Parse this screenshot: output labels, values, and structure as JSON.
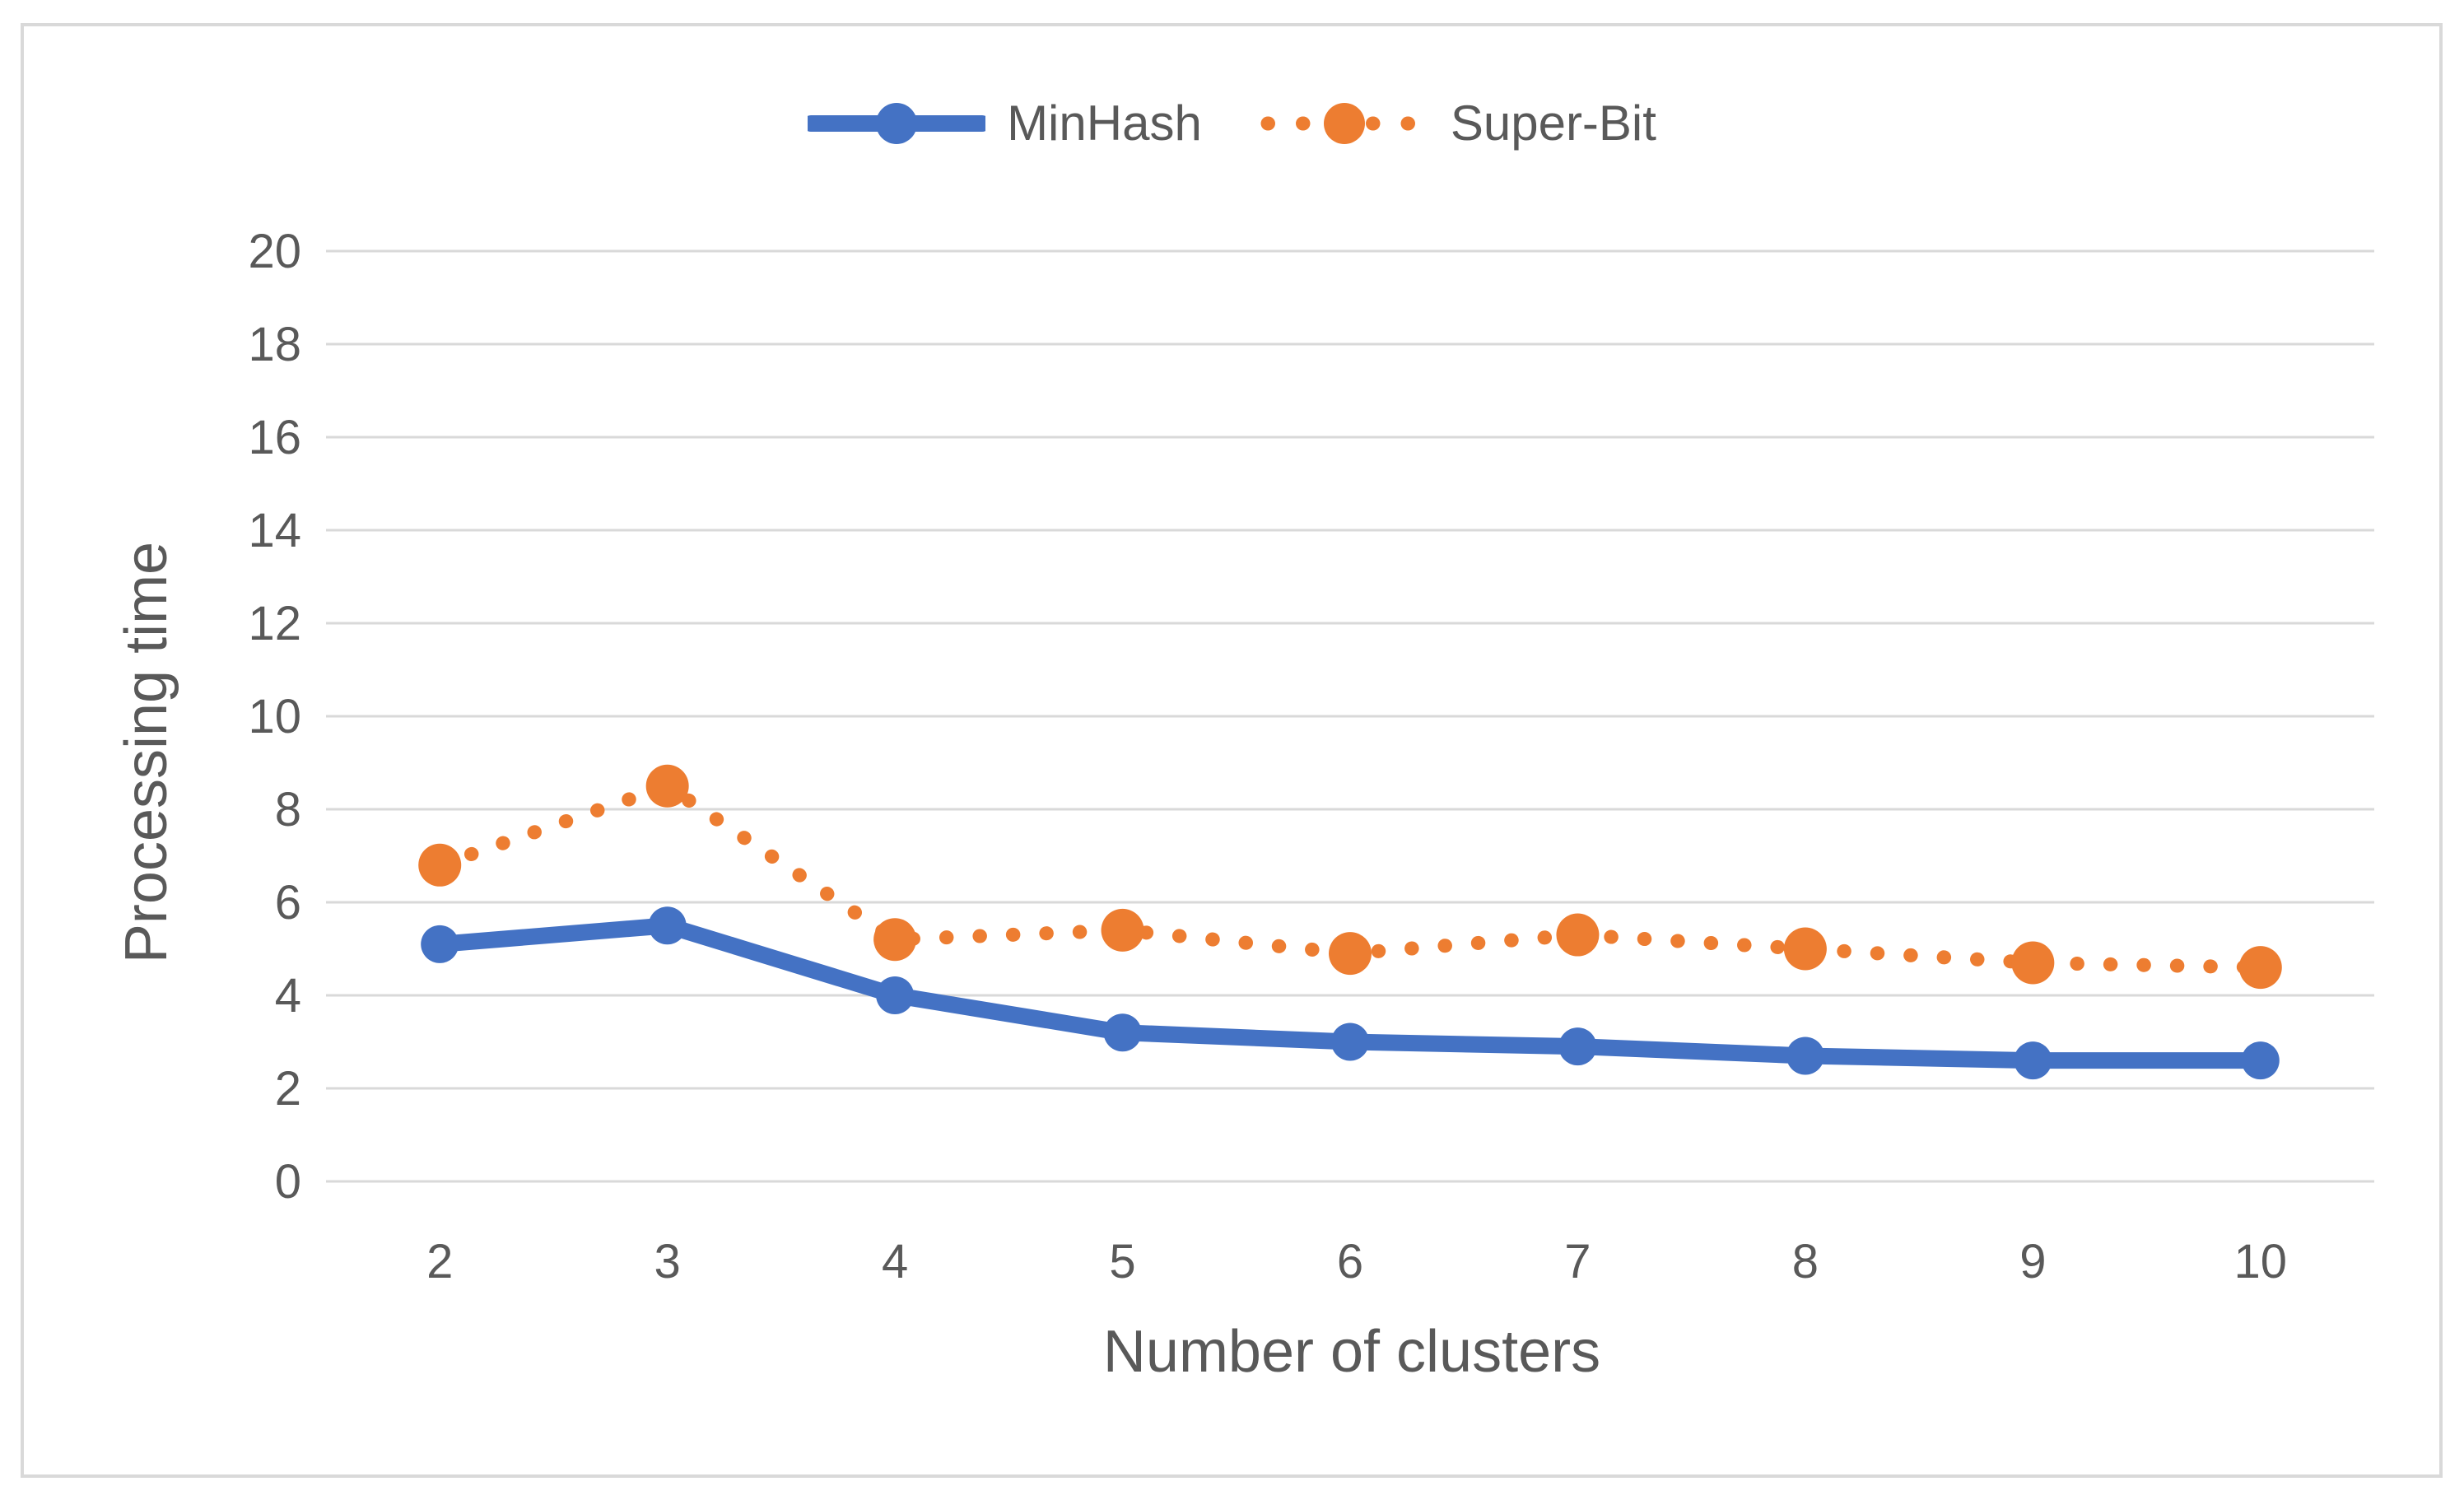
{
  "chart_data": {
    "type": "line",
    "title": "",
    "xlabel": "Number of clusters",
    "ylabel": "Processing time",
    "categories": [
      2,
      3,
      4,
      5,
      6,
      7,
      8,
      9,
      10
    ],
    "series": [
      {
        "name": "MinHash",
        "color": "#4472C4",
        "line_style": "solid",
        "marker": "circle",
        "values": [
          5.1,
          5.5,
          4.0,
          3.2,
          3.0,
          2.9,
          2.7,
          2.6,
          2.6
        ]
      },
      {
        "name": "Super-Bit",
        "color": "#ED7D31",
        "line_style": "dotted",
        "marker": "circle",
        "values": [
          6.8,
          8.5,
          5.2,
          5.4,
          4.9,
          5.3,
          5.0,
          4.7,
          4.6
        ]
      }
    ],
    "ylim": [
      0,
      20
    ],
    "ytick_step": 2,
    "ytick_labels": [
      "0",
      "2",
      "4",
      "6",
      "8",
      "10",
      "12",
      "14",
      "16",
      "18",
      "20"
    ],
    "xtick_labels": [
      "2",
      "3",
      "4",
      "5",
      "6",
      "7",
      "8",
      "9",
      "10"
    ],
    "grid": "horizontal",
    "legend_position": "top-center",
    "colors": {
      "grid": "#D9D9D9",
      "frame": "#D9D9D9",
      "text": "#595959",
      "background": "#FFFFFF"
    }
  }
}
